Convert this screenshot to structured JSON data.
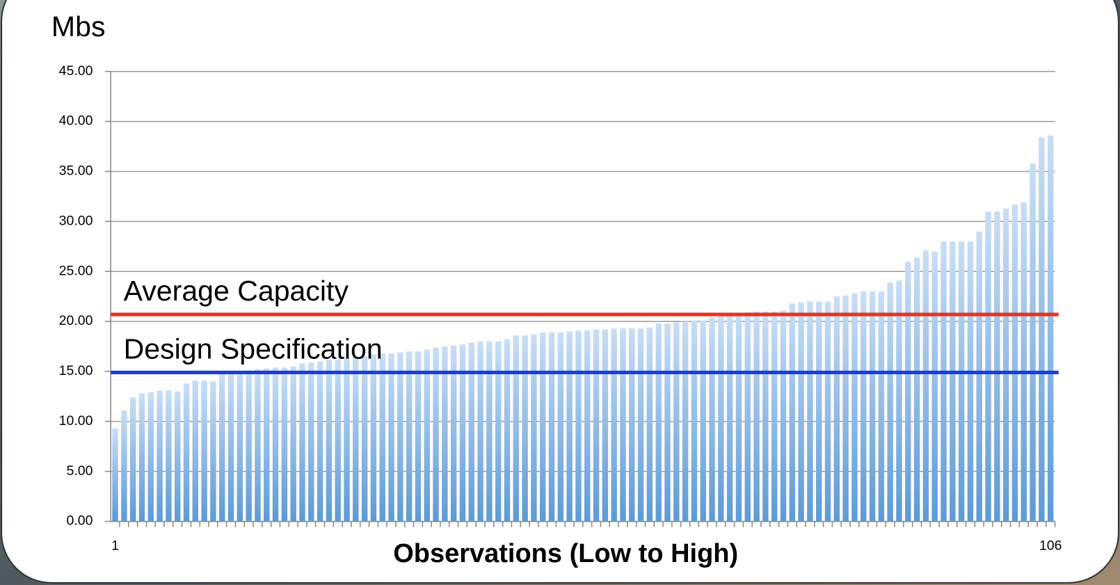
{
  "chart_data": {
    "type": "bar",
    "y_label": "Mbs",
    "x_label": "Observations (Low to High)",
    "categories": [
      "1",
      null,
      null,
      null,
      null,
      null,
      null,
      null,
      null,
      null,
      null,
      null,
      null,
      null,
      null,
      null,
      null,
      null,
      null,
      null,
      null,
      null,
      null,
      null,
      null,
      null,
      null,
      null,
      null,
      null,
      null,
      null,
      null,
      null,
      null,
      null,
      null,
      null,
      null,
      null,
      null,
      null,
      null,
      null,
      null,
      null,
      null,
      null,
      null,
      null,
      null,
      null,
      null,
      null,
      null,
      null,
      null,
      null,
      null,
      null,
      null,
      null,
      null,
      null,
      null,
      null,
      null,
      null,
      null,
      null,
      null,
      null,
      null,
      null,
      null,
      null,
      null,
      null,
      null,
      null,
      null,
      null,
      null,
      null,
      null,
      null,
      null,
      null,
      null,
      null,
      null,
      null,
      null,
      null,
      null,
      null,
      null,
      null,
      null,
      null,
      null,
      null,
      null,
      null,
      null,
      "106"
    ],
    "values": [
      9.3,
      11.1,
      12.4,
      12.8,
      12.9,
      13.1,
      13.1,
      13.0,
      13.8,
      14.1,
      14.1,
      14.0,
      14.8,
      14.9,
      15.0,
      15.1,
      15.2,
      15.3,
      15.4,
      15.4,
      15.5,
      15.8,
      15.9,
      16.0,
      16.2,
      16.2,
      16.3,
      16.4,
      16.5,
      16.7,
      16.8,
      16.8,
      16.9,
      17.0,
      17.0,
      17.2,
      17.4,
      17.5,
      17.6,
      17.7,
      17.9,
      18.0,
      18.0,
      18.0,
      18.2,
      18.6,
      18.6,
      18.7,
      18.9,
      18.9,
      18.9,
      19.0,
      19.1,
      19.1,
      19.2,
      19.2,
      19.3,
      19.3,
      19.3,
      19.3,
      19.4,
      19.8,
      19.8,
      19.9,
      20.0,
      20.1,
      20.1,
      20.4,
      20.5,
      20.6,
      20.8,
      20.9,
      21.0,
      21.0,
      21.0,
      21.1,
      21.8,
      21.9,
      22.0,
      22.0,
      22.0,
      22.5,
      22.6,
      22.8,
      23.0,
      23.0,
      23.0,
      23.9,
      24.1,
      26.0,
      26.4,
      27.1,
      27.0,
      28.0,
      28.0,
      28.0,
      28.0,
      29.0,
      31.0,
      31.0,
      31.3,
      31.7,
      31.9,
      35.8,
      38.4,
      38.6
    ],
    "color": "#8db8e8",
    "ylim": [
      0,
      45
    ],
    "yticks": [
      {
        "value": 0,
        "label": "0.00"
      },
      {
        "value": 5,
        "label": "5.00"
      },
      {
        "value": 10,
        "label": "10.00"
      },
      {
        "value": 15,
        "label": "15.00"
      },
      {
        "value": 20,
        "label": "20.00"
      },
      {
        "value": 25,
        "label": "25.00"
      },
      {
        "value": 30,
        "label": "30.00"
      },
      {
        "value": 35,
        "label": "35.00"
      },
      {
        "value": 40,
        "label": "40.00"
      },
      {
        "value": 45,
        "label": "45.00"
      }
    ],
    "grid": true,
    "reference_lines": [
      {
        "label": "Average Capacity",
        "value": 20.7,
        "color": "#e8321e"
      },
      {
        "label": "Design Specification",
        "value": 14.9,
        "color": "#1a3fd6"
      }
    ]
  }
}
